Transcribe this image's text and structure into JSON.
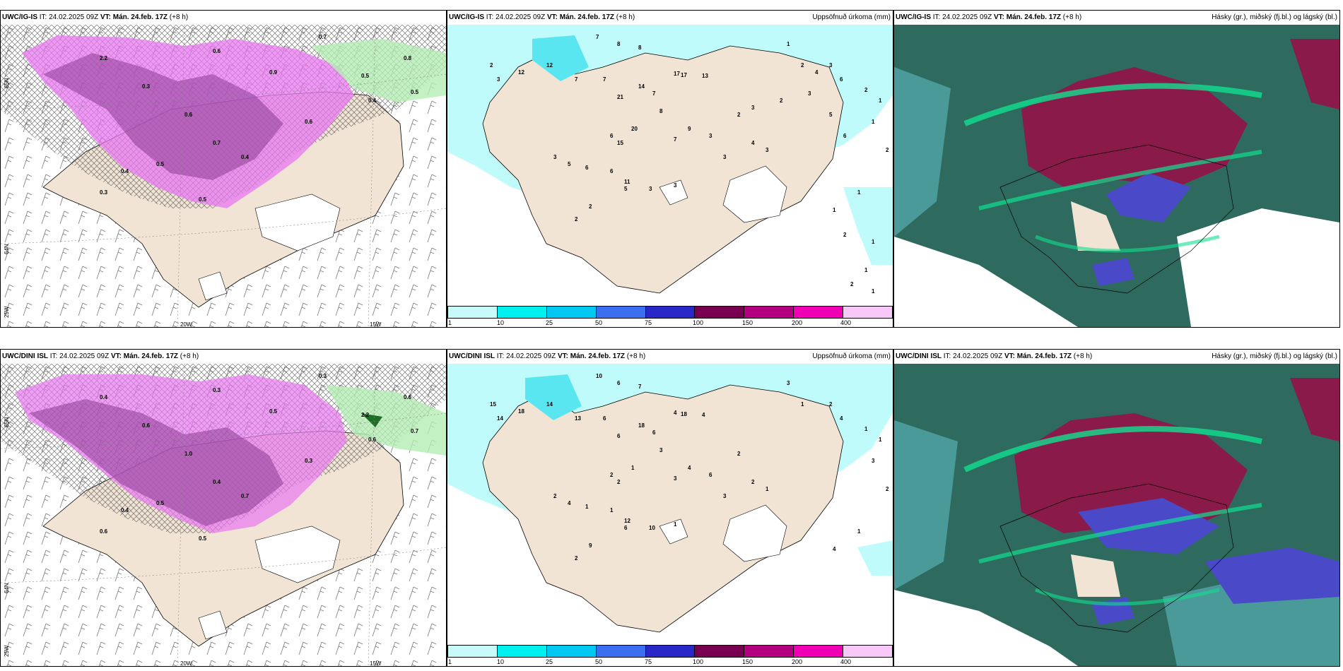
{
  "panels": [
    {
      "id": "top-left",
      "model": "UWC/IG-IS",
      "it_label": "IT:",
      "it_value": "24.02.2025 09Z",
      "vt_label": "VT:",
      "vt_value": "Mán. 24.feb. 17Z",
      "lead": "(+8 h)",
      "right_title": "",
      "lon_labels": [
        "20W",
        "15W"
      ],
      "lat_labels": [
        "65N",
        "64N",
        "25W"
      ],
      "values": [
        "0.6",
        "0.7",
        "0.5",
        "0.8",
        "2.2",
        "0.5",
        "0.4",
        "0.3",
        "0.9",
        "0.6",
        "0.7",
        "0.5",
        "0.4",
        "0.3",
        "0.6",
        "0.5",
        "0.4"
      ]
    },
    {
      "id": "top-middle",
      "model": "UWC/IG-IS",
      "it_label": "IT:",
      "it_value": "24.02.2025 09Z",
      "vt_label": "VT:",
      "vt_value": "Mán. 24.feb. 17Z",
      "lead": "(+8 h)",
      "right_title": "Uppsöfnuð úrkoma (mm)",
      "colorbar_ticks": [
        "1",
        "10",
        "25",
        "50",
        "75",
        "100",
        "150",
        "200",
        "400"
      ],
      "values": [
        "7",
        "8",
        "8",
        "2",
        "3",
        "12",
        "12",
        "7",
        "7",
        "17",
        "17",
        "13",
        "14",
        "7",
        "21",
        "8",
        "6",
        "15",
        "20",
        "7",
        "9",
        "3",
        "2",
        "3",
        "4",
        "3",
        "3",
        "5",
        "6",
        "6",
        "5",
        "11",
        "3",
        "2",
        "2",
        "3",
        "1",
        "2",
        "3",
        "6",
        "2",
        "1",
        "1",
        "2",
        "1",
        "1",
        "2",
        "1",
        "1",
        "1",
        "2",
        "3",
        "2",
        "3",
        "4",
        "5",
        "6"
      ]
    },
    {
      "id": "top-right",
      "model": "UWC/IG-IS",
      "it_label": "IT:",
      "it_value": "24.02.2025 09Z",
      "vt_label": "VT:",
      "vt_value": "Mán. 24.feb. 17Z",
      "lead": "(+8 h)",
      "right_title": "Hásky (gr.), miðský (fj.bl.) og lágský (bl.)"
    },
    {
      "id": "bottom-left",
      "model": "UWC/DINI ISL",
      "it_label": "IT:",
      "it_value": "24.02.2025 09Z",
      "vt_label": "VT:",
      "vt_value": "Mán. 24.feb. 17Z",
      "lead": "(+8 h)",
      "right_title": "",
      "lon_labels": [
        "20W",
        "15W"
      ],
      "lat_labels": [
        "65N",
        "64N",
        "25W"
      ],
      "values": [
        "0.3",
        "0.3",
        "2.2",
        "0.6",
        "0.4",
        "0.7",
        "0.6",
        "0.6",
        "0.5",
        "1.0",
        "0.4",
        "0.5",
        "0.7",
        "0.6",
        "0.3",
        "0.5",
        "0.4"
      ]
    },
    {
      "id": "bottom-middle",
      "model": "UWC/DINI ISL",
      "it_label": "IT:",
      "it_value": "24.02.2025 09Z",
      "vt_label": "VT:",
      "vt_value": "Mán. 24.feb. 17Z",
      "lead": "(+8 h)",
      "right_title": "Uppsöfnuð úrkoma (mm)",
      "colorbar_ticks": [
        "1",
        "10",
        "25",
        "50",
        "75",
        "100",
        "150",
        "200",
        "400"
      ],
      "values": [
        "10",
        "6",
        "7",
        "15",
        "14",
        "18",
        "14",
        "13",
        "6",
        "4",
        "18",
        "4",
        "18",
        "6",
        "6",
        "3",
        "2",
        "2",
        "1",
        "3",
        "4",
        "6",
        "2",
        "3",
        "2",
        "1",
        "2",
        "4",
        "1",
        "1",
        "6",
        "12",
        "10",
        "9",
        "2",
        "1",
        "3",
        "1",
        "2",
        "4",
        "1",
        "1",
        "3",
        "2",
        "1",
        "4"
      ]
    },
    {
      "id": "bottom-right",
      "model": "UWC/DINI ISL",
      "it_label": "IT:",
      "it_value": "24.02.2025 09Z",
      "vt_label": "VT:",
      "vt_value": "Mán. 24.feb. 17Z",
      "lead": "(+8 h)",
      "right_title": "Hásky (gr.), miðský (fj.bl.) og lágský (bl.)"
    }
  ],
  "colorbar_colors": [
    "#c8fafa",
    "#00f0f0",
    "#00c8f0",
    "#3c6ef0",
    "#2828c8",
    "#780050",
    "#b4007e",
    "#f000b4",
    "#f8c8f8"
  ],
  "colors": {
    "land": "#f1e4d5",
    "precip_light": "#c0fbfb",
    "precip_mid": "#5ae6f0",
    "magenta": "#e878f0",
    "purple": "#8c3c94",
    "green_wind": "#b4eeb4",
    "cloud_high": "#2e7a6a",
    "cloud_mid": "#8a1a4a",
    "cloud_low": "#4a4ac8",
    "cloud_green": "#10e090",
    "cloud_sea": "#4a9a9a"
  }
}
